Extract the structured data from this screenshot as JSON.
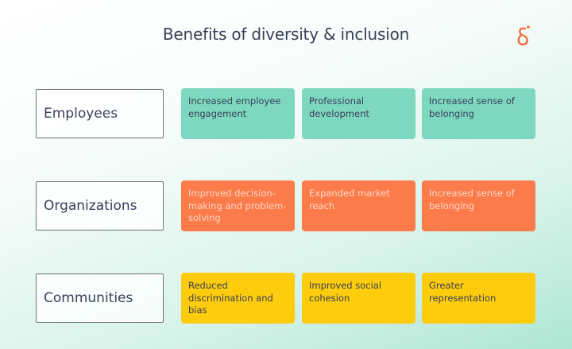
{
  "title": "Benefits of diversity & inclusion",
  "logo_icon": "ampersand-logo",
  "colors": {
    "employees": "#7dd8bf",
    "organizations": "#fb7b4b",
    "communities": "#fdcc0d",
    "accent": "#f26b3a"
  },
  "rows": [
    {
      "label": "Employees",
      "cells": [
        "Increased employee engagement",
        "Professional development",
        "Increased sense of belonging"
      ]
    },
    {
      "label": "Organizations",
      "cells": [
        "Improved decision-making and problem-solving",
        "Expanded market reach",
        "Increased sense of belonging"
      ]
    },
    {
      "label": "Communities",
      "cells": [
        "Reduced discrimination and bias",
        "Improved social cohesion",
        "Greater representation"
      ]
    }
  ]
}
